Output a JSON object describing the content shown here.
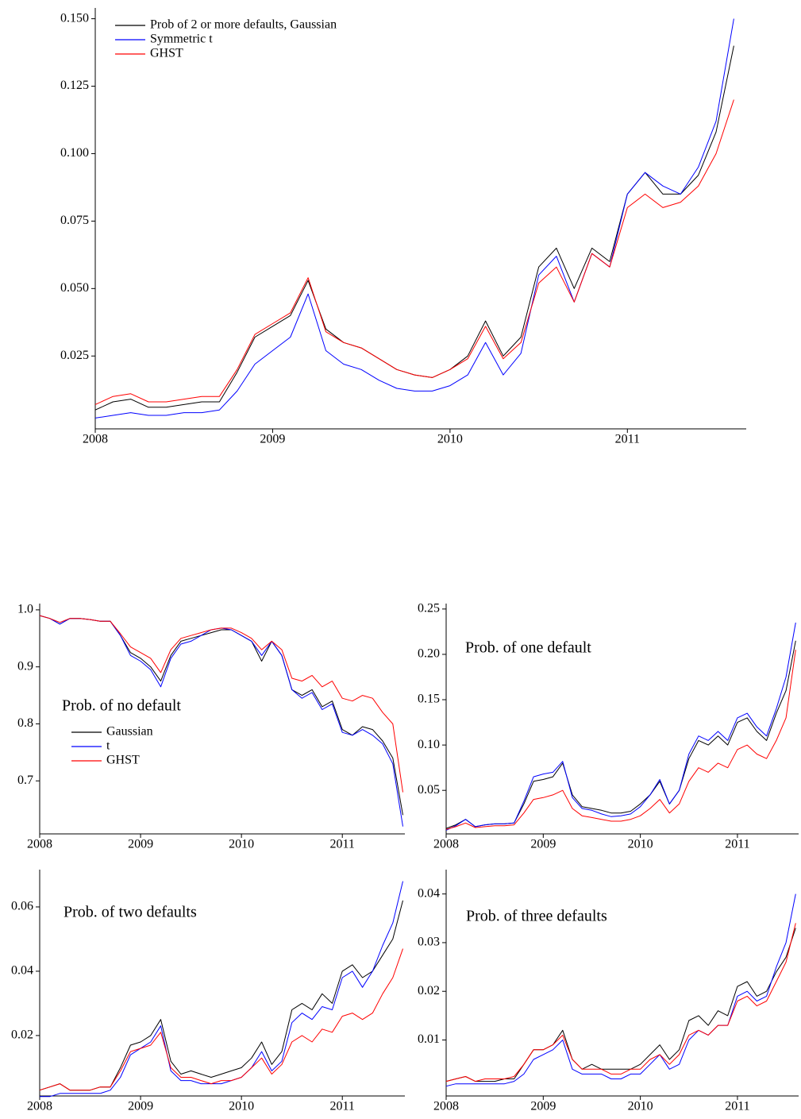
{
  "chart_data": [
    {
      "type": "line",
      "x": [
        2008.0,
        2008.1,
        2008.2,
        2008.3,
        2008.4,
        2008.5,
        2008.6,
        2008.7,
        2008.8,
        2008.9,
        2009.0,
        2009.1,
        2009.2,
        2009.3,
        2009.4,
        2009.5,
        2009.6,
        2009.7,
        2009.8,
        2009.9,
        2010.0,
        2010.1,
        2010.2,
        2010.3,
        2010.4,
        2010.5,
        2010.6,
        2010.7,
        2010.8,
        2010.9,
        2011.0,
        2011.1,
        2011.2,
        2011.3,
        2011.4,
        2011.5,
        2011.6
      ],
      "series": [
        {
          "name": "Prob of 2 or more defaults, Gaussian",
          "color": "#000000",
          "values": [
            0.005,
            0.008,
            0.009,
            0.006,
            0.006,
            0.007,
            0.008,
            0.008,
            0.019,
            0.032,
            0.036,
            0.04,
            0.053,
            0.035,
            0.03,
            0.028,
            0.024,
            0.02,
            0.018,
            0.017,
            0.02,
            0.025,
            0.038,
            0.025,
            0.032,
            0.058,
            0.065,
            0.05,
            0.065,
            0.06,
            0.085,
            0.093,
            0.085,
            0.085,
            0.092,
            0.108,
            0.14
          ]
        },
        {
          "name": "Symmetric t",
          "color": "#0000ff",
          "values": [
            0.002,
            0.003,
            0.004,
            0.003,
            0.003,
            0.004,
            0.004,
            0.005,
            0.012,
            0.022,
            0.027,
            0.032,
            0.048,
            0.027,
            0.022,
            0.02,
            0.016,
            0.013,
            0.012,
            0.012,
            0.014,
            0.018,
            0.03,
            0.018,
            0.026,
            0.055,
            0.062,
            0.045,
            0.063,
            0.058,
            0.085,
            0.093,
            0.088,
            0.085,
            0.095,
            0.112,
            0.15
          ]
        },
        {
          "name": "GHST",
          "color": "#ff0000",
          "values": [
            0.007,
            0.01,
            0.011,
            0.008,
            0.008,
            0.009,
            0.01,
            0.01,
            0.02,
            0.033,
            0.037,
            0.041,
            0.054,
            0.034,
            0.03,
            0.028,
            0.024,
            0.02,
            0.018,
            0.017,
            0.02,
            0.024,
            0.036,
            0.024,
            0.03,
            0.052,
            0.058,
            0.045,
            0.063,
            0.058,
            0.08,
            0.085,
            0.08,
            0.082,
            0.088,
            0.1,
            0.12
          ]
        }
      ],
      "xlim": [
        2008,
        2011.67
      ],
      "ylim": [
        -0.002,
        0.154
      ],
      "xticks": [
        2008,
        2009,
        2010,
        2011
      ],
      "yticks": [
        0.025,
        {
          "value": 0.05,
          "label": "0.050"
        },
        0.075,
        {
          "value": 0.1,
          "label": "0.100"
        },
        0.125,
        {
          "value": 0.15,
          "label": "0.150"
        }
      ],
      "legend": "upper left"
    },
    {
      "type": "line",
      "annotation": "Prob. of no default",
      "x": [
        2008.0,
        2008.1,
        2008.2,
        2008.3,
        2008.4,
        2008.5,
        2008.6,
        2008.7,
        2008.8,
        2008.9,
        2009.0,
        2009.1,
        2009.2,
        2009.3,
        2009.4,
        2009.5,
        2009.6,
        2009.7,
        2009.8,
        2009.9,
        2010.0,
        2010.1,
        2010.2,
        2010.3,
        2010.4,
        2010.5,
        2010.6,
        2010.7,
        2010.8,
        2010.9,
        2011.0,
        2011.1,
        2011.2,
        2011.3,
        2011.4,
        2011.5,
        2011.6
      ],
      "series": [
        {
          "name": "Gaussian",
          "color": "#000000",
          "values": [
            0.99,
            0.985,
            0.975,
            0.985,
            0.985,
            0.983,
            0.98,
            0.98,
            0.955,
            0.925,
            0.915,
            0.9,
            0.875,
            0.92,
            0.945,
            0.95,
            0.955,
            0.96,
            0.965,
            0.965,
            0.955,
            0.945,
            0.91,
            0.945,
            0.92,
            0.86,
            0.85,
            0.86,
            0.83,
            0.84,
            0.79,
            0.78,
            0.795,
            0.79,
            0.77,
            0.74,
            0.64
          ]
        },
        {
          "name": "t",
          "color": "#0000ff",
          "values": [
            0.99,
            0.985,
            0.975,
            0.985,
            0.985,
            0.983,
            0.98,
            0.98,
            0.955,
            0.92,
            0.91,
            0.895,
            0.865,
            0.915,
            0.94,
            0.945,
            0.955,
            0.965,
            0.968,
            0.965,
            0.955,
            0.945,
            0.92,
            0.945,
            0.92,
            0.86,
            0.845,
            0.855,
            0.825,
            0.835,
            0.785,
            0.78,
            0.79,
            0.78,
            0.765,
            0.73,
            0.62
          ]
        },
        {
          "name": "GHST",
          "color": "#ff0000",
          "values": [
            0.99,
            0.985,
            0.978,
            0.985,
            0.985,
            0.983,
            0.98,
            0.98,
            0.958,
            0.935,
            0.925,
            0.915,
            0.89,
            0.93,
            0.95,
            0.955,
            0.96,
            0.965,
            0.968,
            0.968,
            0.96,
            0.95,
            0.93,
            0.945,
            0.93,
            0.88,
            0.875,
            0.885,
            0.865,
            0.875,
            0.845,
            0.84,
            0.85,
            0.845,
            0.82,
            0.8,
            0.68
          ]
        }
      ],
      "xlim": [
        2008,
        2011.62
      ],
      "ylim": [
        0.607,
        1.011
      ],
      "xticks": [
        2008,
        2009,
        2010,
        2011
      ],
      "yticks": [
        0.7,
        0.8,
        0.9,
        {
          "value": 1.0,
          "label": "1.0"
        }
      ],
      "legend": "center left"
    },
    {
      "type": "line",
      "annotation": "Prob. of one default",
      "x": [
        2008.0,
        2008.1,
        2008.2,
        2008.3,
        2008.4,
        2008.5,
        2008.6,
        2008.7,
        2008.8,
        2008.9,
        2009.0,
        2009.1,
        2009.2,
        2009.3,
        2009.4,
        2009.5,
        2009.6,
        2009.7,
        2009.8,
        2009.9,
        2010.0,
        2010.1,
        2010.2,
        2010.3,
        2010.4,
        2010.5,
        2010.6,
        2010.7,
        2010.8,
        2010.9,
        2011.0,
        2011.1,
        2011.2,
        2011.3,
        2011.4,
        2011.5,
        2011.6
      ],
      "series": [
        {
          "color": "#000000",
          "values": [
            0.008,
            0.012,
            0.018,
            0.01,
            0.012,
            0.013,
            0.013,
            0.014,
            0.035,
            0.06,
            0.062,
            0.065,
            0.08,
            0.045,
            0.032,
            0.03,
            0.028,
            0.025,
            0.025,
            0.027,
            0.035,
            0.045,
            0.06,
            0.035,
            0.05,
            0.085,
            0.105,
            0.1,
            0.11,
            0.1,
            0.125,
            0.13,
            0.115,
            0.105,
            0.135,
            0.16,
            0.215
          ]
        },
        {
          "color": "#0000ff",
          "values": [
            0.006,
            0.011,
            0.018,
            0.01,
            0.012,
            0.013,
            0.013,
            0.014,
            0.038,
            0.065,
            0.068,
            0.07,
            0.082,
            0.042,
            0.03,
            0.028,
            0.024,
            0.021,
            0.022,
            0.024,
            0.032,
            0.045,
            0.062,
            0.035,
            0.05,
            0.09,
            0.11,
            0.105,
            0.115,
            0.105,
            0.13,
            0.135,
            0.12,
            0.11,
            0.14,
            0.175,
            0.235
          ]
        },
        {
          "color": "#ff0000",
          "values": [
            0.007,
            0.01,
            0.014,
            0.009,
            0.01,
            0.011,
            0.011,
            0.012,
            0.025,
            0.04,
            0.042,
            0.045,
            0.05,
            0.03,
            0.022,
            0.02,
            0.018,
            0.016,
            0.016,
            0.018,
            0.022,
            0.03,
            0.04,
            0.025,
            0.035,
            0.06,
            0.075,
            0.07,
            0.08,
            0.075,
            0.095,
            0.1,
            0.09,
            0.085,
            0.105,
            0.13,
            0.205
          ]
        }
      ],
      "xlim": [
        2008,
        2011.63
      ],
      "ylim": [
        0.002,
        0.256
      ],
      "xticks": [
        2008,
        2009,
        2010,
        2011
      ],
      "yticks": [
        0.05,
        {
          "value": 0.1,
          "label": "0.10"
        },
        0.15,
        {
          "value": 0.2,
          "label": "0.20"
        },
        0.25
      ]
    },
    {
      "type": "line",
      "annotation": "Prob. of two defaults",
      "x": [
        2008.0,
        2008.1,
        2008.2,
        2008.3,
        2008.4,
        2008.5,
        2008.6,
        2008.7,
        2008.8,
        2008.9,
        2009.0,
        2009.1,
        2009.2,
        2009.3,
        2009.4,
        2009.5,
        2009.6,
        2009.7,
        2009.8,
        2009.9,
        2010.0,
        2010.1,
        2010.2,
        2010.3,
        2010.4,
        2010.5,
        2010.6,
        2010.7,
        2010.8,
        2010.9,
        2011.0,
        2011.1,
        2011.2,
        2011.3,
        2011.4,
        2011.5,
        2011.6
      ],
      "series": [
        {
          "color": "#000000",
          "values": [
            0.003,
            0.004,
            0.005,
            0.003,
            0.003,
            0.003,
            0.004,
            0.004,
            0.01,
            0.017,
            0.018,
            0.02,
            0.025,
            0.012,
            0.008,
            0.009,
            0.008,
            0.007,
            0.008,
            0.009,
            0.01,
            0.013,
            0.018,
            0.011,
            0.015,
            0.028,
            0.03,
            0.028,
            0.033,
            0.03,
            0.04,
            0.042,
            0.038,
            0.04,
            0.045,
            0.05,
            0.062
          ]
        },
        {
          "color": "#0000ff",
          "values": [
            0.001,
            0.001,
            0.002,
            0.002,
            0.002,
            0.002,
            0.002,
            0.003,
            0.007,
            0.014,
            0.016,
            0.018,
            0.023,
            0.009,
            0.006,
            0.006,
            0.005,
            0.005,
            0.005,
            0.006,
            0.007,
            0.01,
            0.015,
            0.009,
            0.012,
            0.024,
            0.027,
            0.025,
            0.029,
            0.028,
            0.038,
            0.04,
            0.035,
            0.04,
            0.048,
            0.055,
            0.068
          ]
        },
        {
          "color": "#ff0000",
          "values": [
            0.003,
            0.004,
            0.005,
            0.003,
            0.003,
            0.003,
            0.004,
            0.004,
            0.009,
            0.015,
            0.016,
            0.017,
            0.021,
            0.01,
            0.007,
            0.007,
            0.006,
            0.005,
            0.006,
            0.006,
            0.007,
            0.01,
            0.013,
            0.008,
            0.011,
            0.018,
            0.02,
            0.018,
            0.022,
            0.021,
            0.026,
            0.027,
            0.025,
            0.027,
            0.033,
            0.038,
            0.047
          ]
        }
      ],
      "xlim": [
        2008,
        2011.62
      ],
      "ylim": [
        0.0012,
        0.0716
      ],
      "xticks": [
        2008,
        2009,
        2010,
        2011
      ],
      "yticks": [
        0.02,
        0.04,
        0.06
      ]
    },
    {
      "type": "line",
      "annotation": "Prob. of three defaults",
      "x": [
        2008.0,
        2008.1,
        2008.2,
        2008.3,
        2008.4,
        2008.5,
        2008.6,
        2008.7,
        2008.8,
        2008.9,
        2009.0,
        2009.1,
        2009.2,
        2009.3,
        2009.4,
        2009.5,
        2009.6,
        2009.7,
        2009.8,
        2009.9,
        2010.0,
        2010.1,
        2010.2,
        2010.3,
        2010.4,
        2010.5,
        2010.6,
        2010.7,
        2010.8,
        2010.9,
        2011.0,
        2011.1,
        2011.2,
        2011.3,
        2011.4,
        2011.5,
        2011.6
      ],
      "series": [
        {
          "color": "#000000",
          "values": [
            0.0015,
            0.002,
            0.0025,
            0.0015,
            0.0015,
            0.0015,
            0.002,
            0.002,
            0.005,
            0.008,
            0.008,
            0.009,
            0.012,
            0.006,
            0.004,
            0.005,
            0.004,
            0.004,
            0.004,
            0.004,
            0.005,
            0.007,
            0.009,
            0.006,
            0.008,
            0.014,
            0.015,
            0.013,
            0.016,
            0.015,
            0.021,
            0.022,
            0.019,
            0.02,
            0.024,
            0.027,
            0.033
          ]
        },
        {
          "color": "#0000ff",
          "values": [
            0.0005,
            0.001,
            0.001,
            0.001,
            0.001,
            0.001,
            0.001,
            0.0015,
            0.003,
            0.006,
            0.007,
            0.008,
            0.01,
            0.004,
            0.003,
            0.003,
            0.003,
            0.002,
            0.002,
            0.003,
            0.003,
            0.005,
            0.007,
            0.004,
            0.005,
            0.01,
            0.012,
            0.011,
            0.013,
            0.013,
            0.019,
            0.02,
            0.018,
            0.019,
            0.025,
            0.03,
            0.04
          ]
        },
        {
          "color": "#ff0000",
          "values": [
            0.0015,
            0.002,
            0.0025,
            0.0015,
            0.002,
            0.002,
            0.002,
            0.0025,
            0.005,
            0.008,
            0.008,
            0.009,
            0.011,
            0.006,
            0.004,
            0.004,
            0.004,
            0.003,
            0.003,
            0.004,
            0.004,
            0.006,
            0.007,
            0.005,
            0.007,
            0.011,
            0.012,
            0.011,
            0.013,
            0.013,
            0.018,
            0.019,
            0.017,
            0.018,
            0.022,
            0.026,
            0.034
          ]
        }
      ],
      "xlim": [
        2008,
        2011.63
      ],
      "ylim": [
        -0.0015,
        0.045
      ],
      "xticks": [
        2008,
        2009,
        2010,
        2011
      ],
      "yticks": [
        0.01,
        0.02,
        0.03,
        0.04
      ]
    }
  ]
}
